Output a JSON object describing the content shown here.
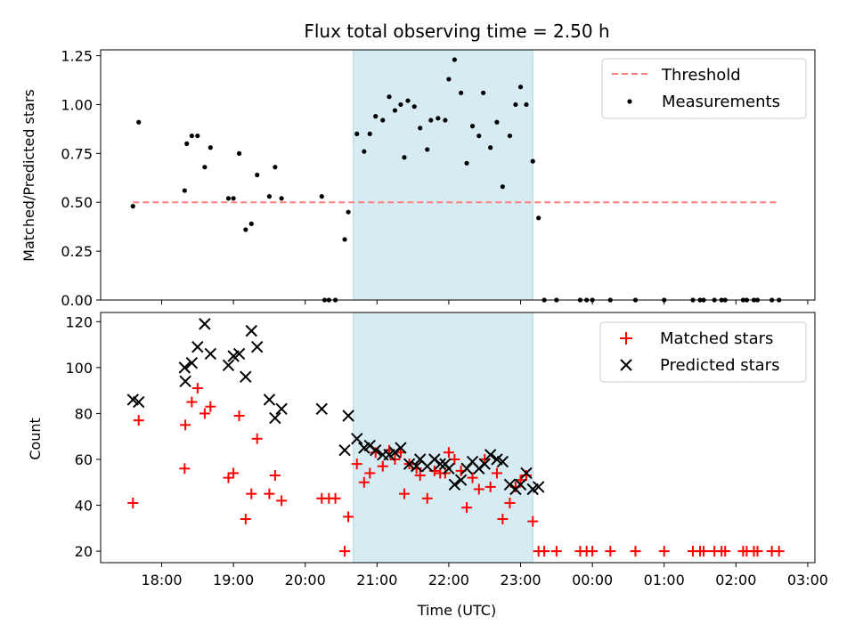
{
  "chart_data": [
    {
      "type": "scatter",
      "title": "Flux total observing time = 2.50 h",
      "xlabel": "",
      "ylabel": "Matched/Predicted stars",
      "xlim_hours": [
        17.15,
        27.1
      ],
      "ylim": [
        0,
        1.28
      ],
      "yticks": [
        0,
        0.25,
        0.5,
        0.75,
        1.0,
        1.25
      ],
      "ytick_labels": [
        "0.00",
        "0.25",
        "0.50",
        "0.75",
        "1.00",
        "1.25"
      ],
      "shaded_span_hours": [
        20.67,
        23.17
      ],
      "shade_color": "#add8e6",
      "threshold": {
        "name": "Threshold",
        "value": 0.5,
        "x_range_hours": [
          17.6,
          26.6
        ],
        "color": "#ff7f7f"
      },
      "series": [
        {
          "name": "Measurements",
          "color": "#000000",
          "marker": "dot",
          "points": [
            [
              17.6,
              0.48
            ],
            [
              17.68,
              0.91
            ],
            [
              18.32,
              0.56
            ],
            [
              18.35,
              0.8
            ],
            [
              18.42,
              0.84
            ],
            [
              18.5,
              0.84
            ],
            [
              18.6,
              0.68
            ],
            [
              18.68,
              0.78
            ],
            [
              18.93,
              0.52
            ],
            [
              19.0,
              0.52
            ],
            [
              19.08,
              0.75
            ],
            [
              19.17,
              0.36
            ],
            [
              19.25,
              0.39
            ],
            [
              19.33,
              0.64
            ],
            [
              19.5,
              0.53
            ],
            [
              19.58,
              0.68
            ],
            [
              19.67,
              0.52
            ],
            [
              20.23,
              0.53
            ],
            [
              20.27,
              0.0
            ],
            [
              20.33,
              0.0
            ],
            [
              20.42,
              0.0
            ],
            [
              20.55,
              0.31
            ],
            [
              20.6,
              0.45
            ],
            [
              20.72,
              0.85
            ],
            [
              20.82,
              0.76
            ],
            [
              20.9,
              0.85
            ],
            [
              20.98,
              0.94
            ],
            [
              21.08,
              0.92
            ],
            [
              21.17,
              1.04
            ],
            [
              21.25,
              0.97
            ],
            [
              21.33,
              1.0
            ],
            [
              21.38,
              0.73
            ],
            [
              21.43,
              1.02
            ],
            [
              21.52,
              0.99
            ],
            [
              21.6,
              0.88
            ],
            [
              21.7,
              0.77
            ],
            [
              21.75,
              0.92
            ],
            [
              21.85,
              0.93
            ],
            [
              21.95,
              0.92
            ],
            [
              22.0,
              1.13
            ],
            [
              22.08,
              1.23
            ],
            [
              22.17,
              1.06
            ],
            [
              22.25,
              0.7
            ],
            [
              22.33,
              0.89
            ],
            [
              22.42,
              0.84
            ],
            [
              22.48,
              1.06
            ],
            [
              22.58,
              0.78
            ],
            [
              22.67,
              0.91
            ],
            [
              22.75,
              0.58
            ],
            [
              22.85,
              0.84
            ],
            [
              22.93,
              1.0
            ],
            [
              23.0,
              1.09
            ],
            [
              23.08,
              1.0
            ],
            [
              23.17,
              0.71
            ],
            [
              23.25,
              0.42
            ],
            [
              23.33,
              0.0
            ],
            [
              23.5,
              0.0
            ],
            [
              23.83,
              0.0
            ],
            [
              23.92,
              0.0
            ],
            [
              24.0,
              0.0
            ],
            [
              24.25,
              0.0
            ],
            [
              24.6,
              0.0
            ],
            [
              25.0,
              0.0
            ],
            [
              25.4,
              0.0
            ],
            [
              25.5,
              0.0
            ],
            [
              25.55,
              0.0
            ],
            [
              25.7,
              0.0
            ],
            [
              25.8,
              0.0
            ],
            [
              25.85,
              0.0
            ],
            [
              26.1,
              0.0
            ],
            [
              26.15,
              0.0
            ],
            [
              26.25,
              0.0
            ],
            [
              26.3,
              0.0
            ],
            [
              26.5,
              0.0
            ],
            [
              26.6,
              0.0
            ]
          ]
        }
      ]
    },
    {
      "type": "scatter",
      "title": "",
      "xlabel": "Time (UTC)",
      "ylabel": "Count",
      "xlim_hours": [
        17.15,
        27.1
      ],
      "ylim": [
        15,
        124
      ],
      "yticks": [
        20,
        40,
        60,
        80,
        100,
        120
      ],
      "ytick_labels": [
        "20",
        "40",
        "60",
        "80",
        "100",
        "120"
      ],
      "xticks_hours": [
        18,
        19,
        20,
        21,
        22,
        23,
        24,
        25,
        26,
        27
      ],
      "xtick_labels": [
        "18:00",
        "19:00",
        "20:00",
        "21:00",
        "22:00",
        "23:00",
        "00:00",
        "01:00",
        "02:00",
        "03:00"
      ],
      "shaded_span_hours": [
        20.67,
        23.17
      ],
      "shade_color": "#add8e6",
      "series": [
        {
          "name": "Matched stars",
          "color": "#ff0000",
          "marker": "plus",
          "points": [
            [
              17.6,
              41
            ],
            [
              17.68,
              77
            ],
            [
              18.32,
              56
            ],
            [
              18.33,
              75
            ],
            [
              18.42,
              85
            ],
            [
              18.5,
              91
            ],
            [
              18.6,
              80
            ],
            [
              18.68,
              83
            ],
            [
              18.93,
              52
            ],
            [
              19.0,
              54
            ],
            [
              19.08,
              79
            ],
            [
              19.17,
              34
            ],
            [
              19.25,
              45
            ],
            [
              19.33,
              69
            ],
            [
              19.5,
              45
            ],
            [
              19.58,
              53
            ],
            [
              19.67,
              42
            ],
            [
              20.23,
              43
            ],
            [
              20.33,
              43
            ],
            [
              20.42,
              43
            ],
            [
              20.55,
              20
            ],
            [
              20.6,
              35
            ],
            [
              20.72,
              58
            ],
            [
              20.82,
              50
            ],
            [
              20.9,
              54
            ],
            [
              20.98,
              63
            ],
            [
              21.08,
              57
            ],
            [
              21.17,
              64
            ],
            [
              21.25,
              60
            ],
            [
              21.33,
              63
            ],
            [
              21.38,
              45
            ],
            [
              21.45,
              58
            ],
            [
              21.55,
              56
            ],
            [
              21.6,
              53
            ],
            [
              21.7,
              43
            ],
            [
              21.8,
              55
            ],
            [
              21.88,
              54
            ],
            [
              21.95,
              54
            ],
            [
              22.0,
              63
            ],
            [
              22.08,
              60
            ],
            [
              22.17,
              55
            ],
            [
              22.25,
              39
            ],
            [
              22.33,
              52
            ],
            [
              22.42,
              47
            ],
            [
              22.5,
              60
            ],
            [
              22.58,
              48
            ],
            [
              22.67,
              54
            ],
            [
              22.75,
              34
            ],
            [
              22.85,
              41
            ],
            [
              22.93,
              48
            ],
            [
              23.0,
              51
            ],
            [
              23.08,
              53
            ],
            [
              23.17,
              33
            ],
            [
              23.25,
              20
            ],
            [
              23.33,
              20
            ],
            [
              23.5,
              20
            ],
            [
              23.83,
              20
            ],
            [
              23.92,
              20
            ],
            [
              24.0,
              20
            ],
            [
              24.25,
              20
            ],
            [
              24.6,
              20
            ],
            [
              25.0,
              20
            ],
            [
              25.4,
              20
            ],
            [
              25.5,
              20
            ],
            [
              25.55,
              20
            ],
            [
              25.7,
              20
            ],
            [
              25.8,
              20
            ],
            [
              25.85,
              20
            ],
            [
              26.1,
              20
            ],
            [
              26.15,
              20
            ],
            [
              26.25,
              20
            ],
            [
              26.3,
              20
            ],
            [
              26.5,
              20
            ],
            [
              26.6,
              20
            ]
          ]
        },
        {
          "name": "Predicted stars",
          "color": "#000000",
          "marker": "x",
          "points": [
            [
              17.6,
              86
            ],
            [
              17.68,
              85
            ],
            [
              18.32,
              100
            ],
            [
              18.33,
              94
            ],
            [
              18.42,
              102
            ],
            [
              18.5,
              109
            ],
            [
              18.6,
              119
            ],
            [
              18.68,
              106
            ],
            [
              18.93,
              101
            ],
            [
              19.0,
              105
            ],
            [
              19.08,
              106
            ],
            [
              19.17,
              96
            ],
            [
              19.25,
              116
            ],
            [
              19.33,
              109
            ],
            [
              19.5,
              86
            ],
            [
              19.58,
              78
            ],
            [
              19.67,
              82
            ],
            [
              20.23,
              82
            ],
            [
              20.55,
              64
            ],
            [
              20.6,
              79
            ],
            [
              20.72,
              69
            ],
            [
              20.82,
              65
            ],
            [
              20.9,
              66
            ],
            [
              20.98,
              64
            ],
            [
              21.08,
              62
            ],
            [
              21.17,
              62
            ],
            [
              21.25,
              63
            ],
            [
              21.33,
              65
            ],
            [
              21.45,
              58
            ],
            [
              21.55,
              57
            ],
            [
              21.6,
              60
            ],
            [
              21.7,
              57
            ],
            [
              21.8,
              60
            ],
            [
              21.88,
              58
            ],
            [
              21.95,
              58
            ],
            [
              22.0,
              56
            ],
            [
              22.08,
              49
            ],
            [
              22.17,
              51
            ],
            [
              22.25,
              56
            ],
            [
              22.33,
              59
            ],
            [
              22.42,
              56
            ],
            [
              22.5,
              58
            ],
            [
              22.58,
              62
            ],
            [
              22.67,
              60
            ],
            [
              22.75,
              59
            ],
            [
              22.85,
              49
            ],
            [
              22.93,
              47
            ],
            [
              23.0,
              49
            ],
            [
              23.08,
              54
            ],
            [
              23.17,
              47
            ],
            [
              23.25,
              48
            ]
          ]
        }
      ]
    }
  ]
}
